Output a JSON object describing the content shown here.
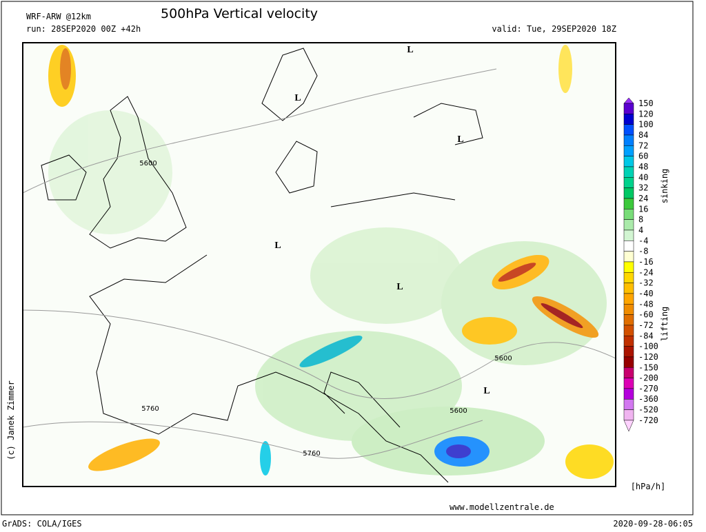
{
  "header": {
    "model": "WRF-ARW @12km",
    "title": "500hPa Vertical velocity",
    "run": "run: 28SEP2020 00Z +42h",
    "valid": "valid: Tue, 29SEP2020 18Z"
  },
  "map": {
    "labels": [
      "L",
      "L",
      "L",
      "L",
      "L",
      "L",
      "5600",
      "5760",
      "5600",
      "5600",
      "5760"
    ],
    "credit": "(c) Janek Zimmer"
  },
  "colorbar": {
    "levels": [
      150,
      120,
      100,
      84,
      72,
      60,
      48,
      40,
      32,
      24,
      16,
      8,
      4,
      -4,
      -8,
      -16,
      -24,
      -32,
      -40,
      -48,
      -60,
      -72,
      -84,
      -100,
      -120,
      -150,
      -200,
      -270,
      -360,
      -520,
      -720
    ],
    "colors": [
      "#9b30ff",
      "#5a00d0",
      "#0000d0",
      "#0050ff",
      "#0080ff",
      "#00a0ff",
      "#00c8e6",
      "#00d2b4",
      "#00d28c",
      "#00c864",
      "#3cc83c",
      "#78dc78",
      "#aaeaaa",
      "#d2f5d2",
      "#ffffff",
      "#ffffd2",
      "#ffff00",
      "#ffd700",
      "#ffbe00",
      "#ffa500",
      "#f08c00",
      "#e06e00",
      "#d25000",
      "#c03000",
      "#aa1400",
      "#960000",
      "#c8006e",
      "#dc00b4",
      "#b400dc",
      "#d278f0",
      "#f0b4f0",
      "#ffd2ff"
    ],
    "upper_label": "sinking",
    "lower_label": "lifting",
    "unit": "[hPa/h]"
  },
  "footer": {
    "website": "www.modellzentrale.de",
    "software": "GrADS: COLA/IGES",
    "timestamp": "2020-09-28-06:05"
  }
}
